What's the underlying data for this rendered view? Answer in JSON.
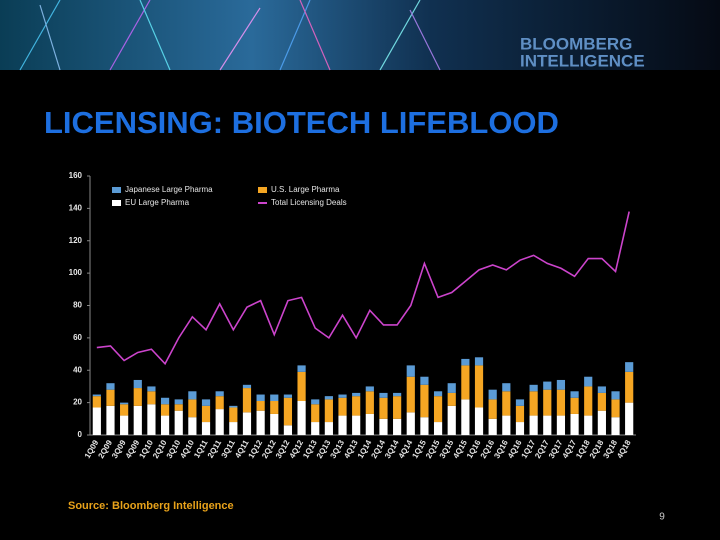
{
  "slide": {
    "logo": [
      "BLOOMBERG",
      "INTELLIGENCE"
    ],
    "title": "LICENSING: BIOTECH LIFEBLOOD",
    "source": "Source: Bloomberg Intelligence",
    "page": "9"
  },
  "chart_data": {
    "type": "bar",
    "stacked": true,
    "categories": [
      "1Q09",
      "2Q09",
      "3Q09",
      "4Q09",
      "1Q10",
      "2Q10",
      "3Q10",
      "4Q10",
      "1Q11",
      "2Q11",
      "3Q11",
      "4Q11",
      "1Q12",
      "2Q12",
      "3Q12",
      "4Q12",
      "1Q13",
      "2Q13",
      "3Q13",
      "4Q13",
      "1Q14",
      "2Q14",
      "3Q14",
      "4Q14",
      "1Q15",
      "2Q15",
      "3Q15",
      "4Q15",
      "1Q16",
      "2Q16",
      "3Q16",
      "4Q16",
      "1Q17",
      "2Q17",
      "3Q17",
      "4Q17",
      "1Q18",
      "2Q18",
      "3Q18",
      "4Q18"
    ],
    "series": [
      {
        "name": "EU Large Pharma",
        "color": "#ffffff",
        "values": [
          17,
          18,
          12,
          18,
          19,
          12,
          15,
          11,
          8,
          16,
          8,
          14,
          15,
          13,
          6,
          21,
          8,
          8,
          12,
          12,
          13,
          10,
          10,
          14,
          11,
          8,
          18,
          22,
          17,
          10,
          12,
          8,
          12,
          12,
          12,
          13,
          12,
          15,
          11,
          20
        ]
      },
      {
        "name": "U.S. Large Pharma",
        "color": "#f5a623",
        "values": [
          7,
          10,
          7,
          11,
          8,
          7,
          4,
          11,
          10,
          8,
          9,
          15,
          6,
          8,
          17,
          18,
          11,
          14,
          11,
          12,
          14,
          13,
          14,
          22,
          20,
          16,
          8,
          21,
          26,
          12,
          15,
          10,
          15,
          16,
          16,
          10,
          18,
          11,
          11,
          19
        ]
      },
      {
        "name": "Japanese Large Pharma",
        "color": "#5b9bd5",
        "values": [
          1,
          4,
          1,
          5,
          3,
          4,
          3,
          5,
          4,
          3,
          1,
          2,
          4,
          4,
          2,
          4,
          3,
          2,
          2,
          2,
          3,
          3,
          2,
          7,
          5,
          3,
          6,
          4,
          5,
          6,
          5,
          4,
          4,
          5,
          6,
          4,
          6,
          4,
          5,
          6
        ]
      },
      {
        "name": "Total Licensing Deals",
        "type": "line",
        "color": "#cc44cc",
        "values": [
          54,
          55,
          46,
          51,
          53,
          44,
          60,
          73,
          65,
          81,
          65,
          79,
          83,
          62,
          83,
          85,
          66,
          60,
          74,
          60,
          77,
          68,
          68,
          80,
          106,
          85,
          88,
          95,
          102,
          105,
          102,
          108,
          111,
          106,
          103,
          98,
          109,
          109,
          101,
          138
        ]
      }
    ],
    "ylim": [
      0,
      160
    ],
    "yticks": [
      0,
      20,
      40,
      60,
      80,
      100,
      120,
      140,
      160
    ],
    "grid": false
  }
}
